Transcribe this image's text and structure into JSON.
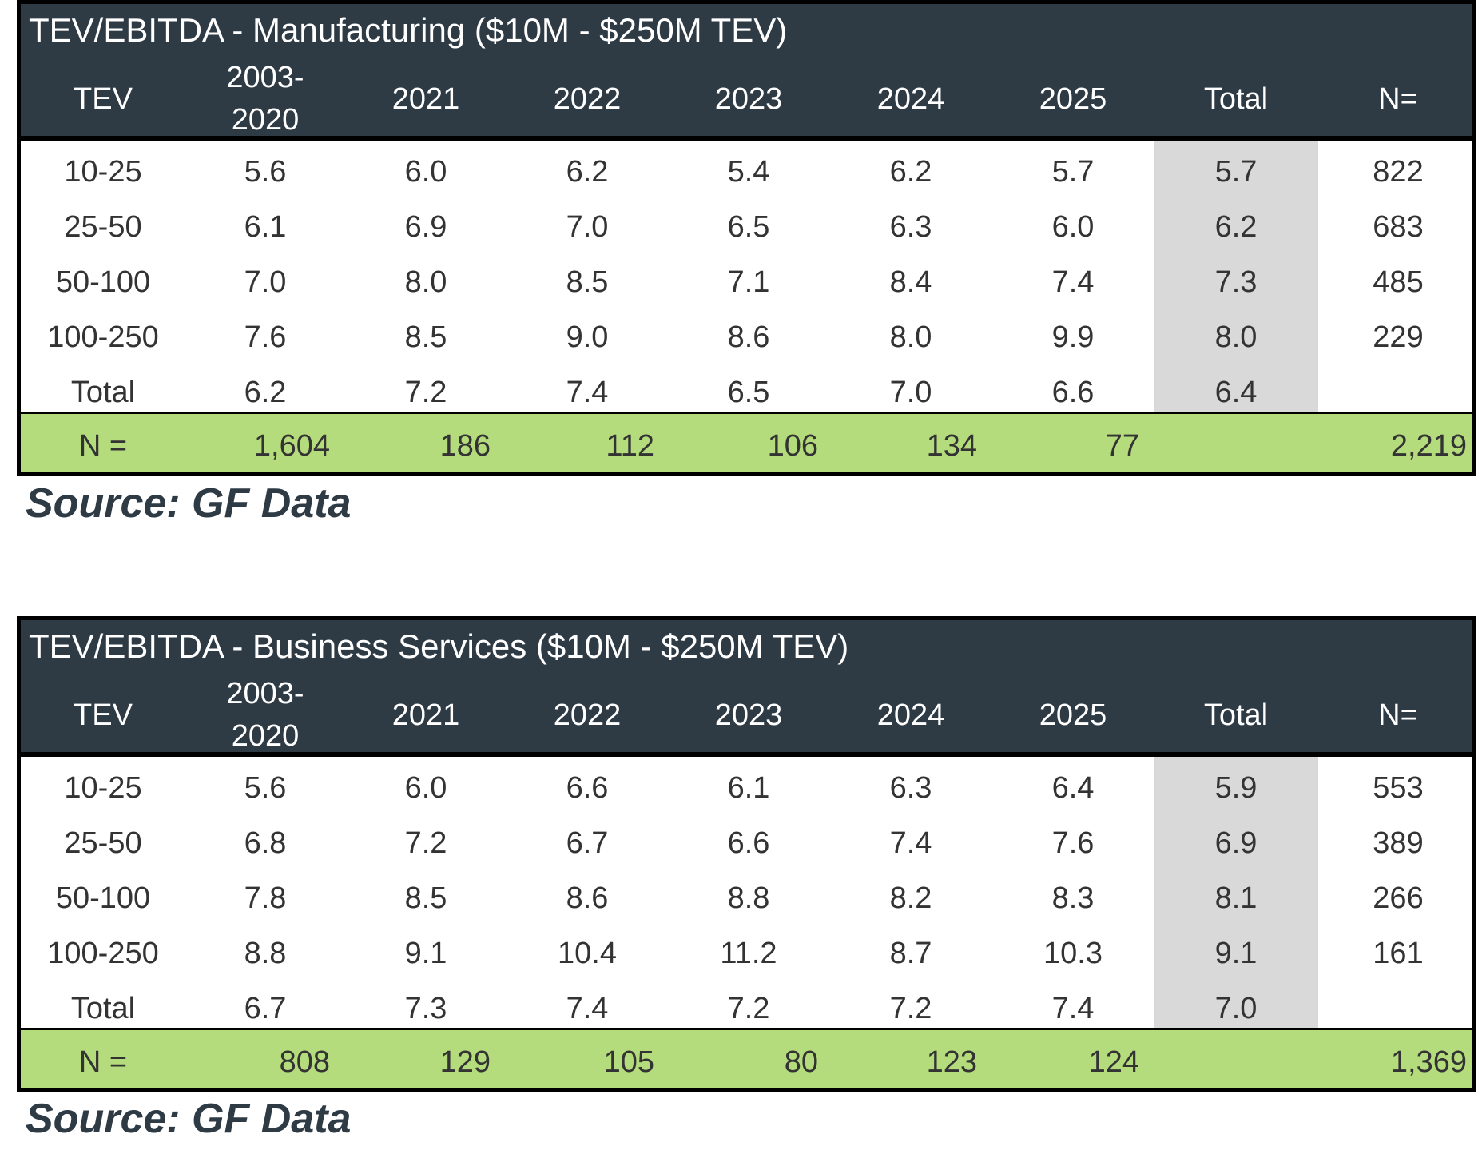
{
  "tables": [
    {
      "title": "TEV/EBITDA - Manufacturing ($10M - $250M TEV)",
      "headers": [
        "TEV",
        "2003-\n2020",
        "2021",
        "2022",
        "2023",
        "2024",
        "2025",
        "Total",
        "N="
      ],
      "rows": [
        [
          "10-25",
          "5.6",
          "6.0",
          "6.2",
          "5.4",
          "6.2",
          "5.7",
          "5.7",
          "822"
        ],
        [
          "25-50",
          "6.1",
          "6.9",
          "7.0",
          "6.5",
          "6.3",
          "6.0",
          "6.2",
          "683"
        ],
        [
          "50-100",
          "7.0",
          "8.0",
          "8.5",
          "7.1",
          "8.4",
          "7.4",
          "7.3",
          "485"
        ],
        [
          "100-250",
          "7.6",
          "8.5",
          "9.0",
          "8.6",
          "8.0",
          "9.9",
          "8.0",
          "229"
        ],
        [
          "Total",
          "6.2",
          "7.2",
          "7.4",
          "6.5",
          "7.0",
          "6.6",
          "6.4",
          ""
        ]
      ],
      "footer": [
        "N =",
        "1,604",
        "186",
        "112",
        "106",
        "134",
        "77",
        "2,219"
      ],
      "source": "Source: GF Data"
    },
    {
      "title": "TEV/EBITDA - Business Services ($10M - $250M TEV)",
      "headers": [
        "TEV",
        "2003-\n2020",
        "2021",
        "2022",
        "2023",
        "2024",
        "2025",
        "Total",
        "N="
      ],
      "rows": [
        [
          "10-25",
          "5.6",
          "6.0",
          "6.6",
          "6.1",
          "6.3",
          "6.4",
          "5.9",
          "553"
        ],
        [
          "25-50",
          "6.8",
          "7.2",
          "6.7",
          "6.6",
          "7.4",
          "7.6",
          "6.9",
          "389"
        ],
        [
          "50-100",
          "7.8",
          "8.5",
          "8.6",
          "8.8",
          "8.2",
          "8.3",
          "8.1",
          "266"
        ],
        [
          "100-250",
          "8.8",
          "9.1",
          "10.4",
          "11.2",
          "8.7",
          "10.3",
          "9.1",
          "161"
        ],
        [
          "Total",
          "6.7",
          "7.3",
          "7.4",
          "7.2",
          "7.2",
          "7.4",
          "7.0",
          ""
        ]
      ],
      "footer": [
        "N =",
        "808",
        "129",
        "105",
        "80",
        "123",
        "124",
        "1,369"
      ],
      "source": "Source: GF Data"
    }
  ],
  "colors": {
    "header_bg": "#2e3a44",
    "total_column_shade": "#d9d9d9",
    "footer_bg": "#b5dc7c"
  }
}
